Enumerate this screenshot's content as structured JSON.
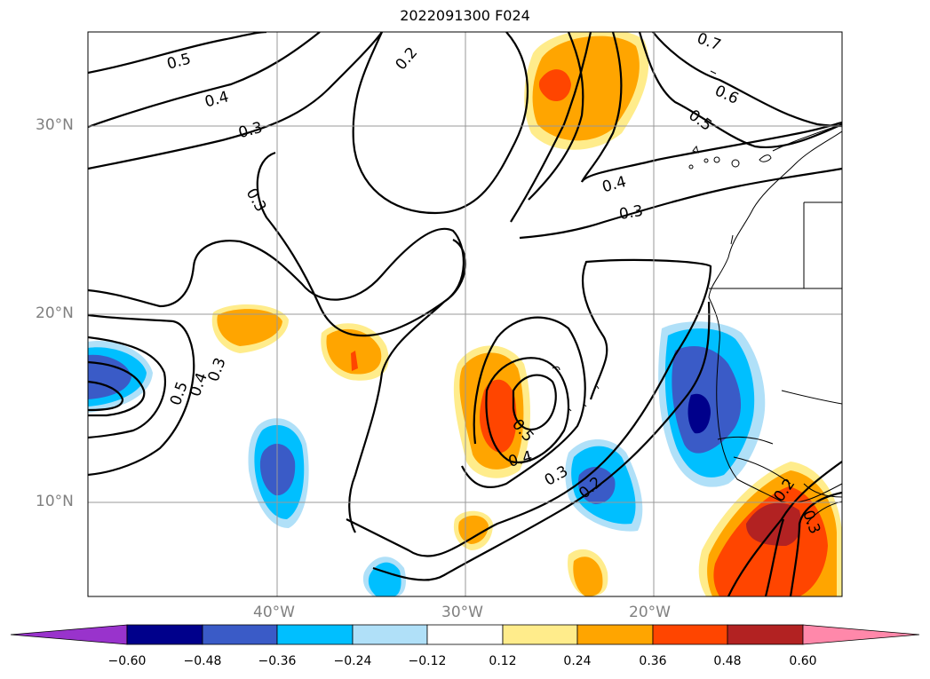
{
  "title": "2022091300 F024",
  "map": {
    "lat_labels": [
      "30°N",
      "20°N",
      "10°N"
    ],
    "lon_labels": [
      "40°W",
      "30°W",
      "20°W"
    ],
    "grid": true,
    "contour_labels": [
      "0.5",
      "0.4",
      "0.3",
      "0.2",
      "0.3",
      "0.5",
      "0.4",
      "0.3",
      "0.5",
      "0.4",
      "0.3",
      "0.2",
      "0.7",
      "0.6",
      "0.5",
      "0.4",
      "0.3",
      "0.2",
      "0.3"
    ]
  },
  "colorbar": {
    "ticks": [
      "−0.60",
      "−0.48",
      "−0.36",
      "−0.24",
      "−0.12",
      "0.12",
      "0.24",
      "0.36",
      "0.48",
      "0.60"
    ],
    "colors": [
      "#9933cc",
      "#00008b",
      "#3a5bc7",
      "#00bfff",
      "#b0e0f8",
      "#ffffff",
      "#ffec8b",
      "#ffa500",
      "#ff4500",
      "#b22222",
      "#ff88aa"
    ]
  }
}
